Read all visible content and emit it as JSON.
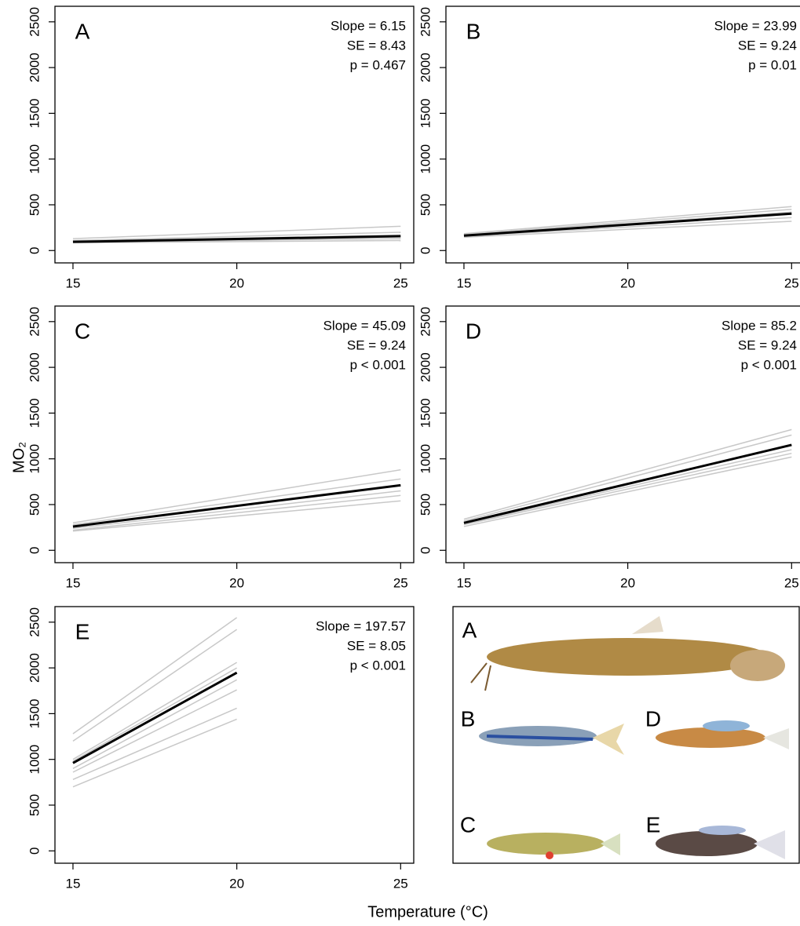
{
  "chart_data": [
    {
      "type": "line",
      "panel_label": "A",
      "annotations": [
        "Slope = 6.15",
        "SE = 8.43",
        "p = 0.467"
      ],
      "x": [
        15,
        25
      ],
      "xlim": [
        14.45,
        25.4
      ],
      "xticks": [
        15,
        20,
        25
      ],
      "ylim": [
        -135,
        2670
      ],
      "yticks": [
        0,
        500,
        1000,
        1500,
        2000,
        2500
      ],
      "series": [
        {
          "color": "#c8c8c8",
          "line_width": 1.5,
          "values": [
            130,
            265
          ]
        },
        {
          "color": "#c8c8c8",
          "line_width": 1.5,
          "values": [
            110,
            200
          ]
        },
        {
          "color": "#c8c8c8",
          "line_width": 1.5,
          "values": [
            90,
            130
          ]
        },
        {
          "color": "#c8c8c8",
          "line_width": 1.5,
          "values": [
            85,
            110
          ]
        },
        {
          "color": "#c8c8c8",
          "line_width": 1.5,
          "values": [
            100,
            170
          ]
        },
        {
          "color": "#000000",
          "line_width": 3,
          "values": [
            95,
            157
          ]
        }
      ]
    },
    {
      "type": "line",
      "panel_label": "B",
      "annotations": [
        "Slope = 23.99",
        "SE = 9.24",
        "p = 0.01"
      ],
      "x": [
        15,
        25
      ],
      "xlim": [
        14.45,
        25.4
      ],
      "xticks": [
        15,
        20,
        25
      ],
      "ylim": [
        -135,
        2670
      ],
      "yticks": [
        0,
        500,
        1000,
        1500,
        2000,
        2500
      ],
      "series": [
        {
          "color": "#c8c8c8",
          "line_width": 1.5,
          "values": [
            185,
            480
          ]
        },
        {
          "color": "#c8c8c8",
          "line_width": 1.5,
          "values": [
            175,
            450
          ]
        },
        {
          "color": "#c8c8c8",
          "line_width": 1.5,
          "values": [
            145,
            320
          ]
        },
        {
          "color": "#c8c8c8",
          "line_width": 1.5,
          "values": [
            155,
            360
          ]
        },
        {
          "color": "#c8c8c8",
          "line_width": 1.5,
          "values": [
            170,
            420
          ]
        },
        {
          "color": "#000000",
          "line_width": 3,
          "values": [
            163,
            403
          ]
        }
      ]
    },
    {
      "type": "line",
      "panel_label": "C",
      "annotations": [
        "Slope = 45.09",
        "SE = 9.24",
        "p < 0.001"
      ],
      "x": [
        15,
        25
      ],
      "xlim": [
        14.45,
        25.4
      ],
      "xticks": [
        15,
        20,
        25
      ],
      "ylim": [
        -135,
        2670
      ],
      "yticks": [
        0,
        500,
        1000,
        1500,
        2000,
        2500
      ],
      "series": [
        {
          "color": "#c8c8c8",
          "line_width": 1.5,
          "values": [
            300,
            880
          ]
        },
        {
          "color": "#c8c8c8",
          "line_width": 1.5,
          "values": [
            280,
            780
          ]
        },
        {
          "color": "#c8c8c8",
          "line_width": 1.5,
          "values": [
            220,
            600
          ]
        },
        {
          "color": "#c8c8c8",
          "line_width": 1.5,
          "values": [
            210,
            540
          ]
        },
        {
          "color": "#c8c8c8",
          "line_width": 1.5,
          "values": [
            240,
            650
          ]
        },
        {
          "color": "#000000",
          "line_width": 3,
          "values": [
            260,
            711
          ]
        }
      ]
    },
    {
      "type": "line",
      "panel_label": "D",
      "annotations": [
        "Slope = 85.2",
        "SE = 9.24",
        "p < 0.001"
      ],
      "x": [
        15,
        25
      ],
      "xlim": [
        14.45,
        25.4
      ],
      "xticks": [
        15,
        20,
        25
      ],
      "ylim": [
        -135,
        2670
      ],
      "yticks": [
        0,
        500,
        1000,
        1500,
        2000,
        2500
      ],
      "series": [
        {
          "color": "#c8c8c8",
          "line_width": 1.5,
          "values": [
            340,
            1320
          ]
        },
        {
          "color": "#c8c8c8",
          "line_width": 1.5,
          "values": [
            320,
            1260
          ]
        },
        {
          "color": "#c8c8c8",
          "line_width": 1.5,
          "values": [
            280,
            1060
          ]
        },
        {
          "color": "#c8c8c8",
          "line_width": 1.5,
          "values": [
            260,
            1020
          ]
        },
        {
          "color": "#c8c8c8",
          "line_width": 1.5,
          "values": [
            290,
            1100
          ]
        },
        {
          "color": "#000000",
          "line_width": 3,
          "values": [
            300,
            1152
          ]
        }
      ]
    },
    {
      "type": "line",
      "panel_label": "E",
      "annotations": [
        "Slope = 197.57",
        "SE = 8.05",
        "p < 0.001"
      ],
      "x": [
        15,
        20
      ],
      "xlim": [
        14.45,
        25.4
      ],
      "xticks": [
        15,
        20,
        25
      ],
      "ylim": [
        -135,
        2670
      ],
      "yticks": [
        0,
        500,
        1000,
        1500,
        2000,
        2500
      ],
      "series": [
        {
          "color": "#c8c8c8",
          "line_width": 1.5,
          "values": [
            1280,
            2550
          ]
        },
        {
          "color": "#c8c8c8",
          "line_width": 1.5,
          "values": [
            1200,
            2420
          ]
        },
        {
          "color": "#c8c8c8",
          "line_width": 1.5,
          "values": [
            1000,
            2060
          ]
        },
        {
          "color": "#c8c8c8",
          "line_width": 1.5,
          "values": [
            980,
            2000
          ]
        },
        {
          "color": "#c8c8c8",
          "line_width": 1.5,
          "values": [
            900,
            1870
          ]
        },
        {
          "color": "#c8c8c8",
          "line_width": 1.5,
          "values": [
            860,
            1760
          ]
        },
        {
          "color": "#c8c8c8",
          "line_width": 1.5,
          "values": [
            780,
            1560
          ]
        },
        {
          "color": "#c8c8c8",
          "line_width": 1.5,
          "values": [
            700,
            1440
          ]
        },
        {
          "color": "#000000",
          "line_width": 3,
          "values": [
            960,
            1948
          ]
        }
      ]
    }
  ],
  "y_label": "MO₂",
  "x_label": "Temperature (°C)",
  "species_panel": {
    "labels": [
      "A",
      "B",
      "C",
      "D",
      "E"
    ]
  }
}
